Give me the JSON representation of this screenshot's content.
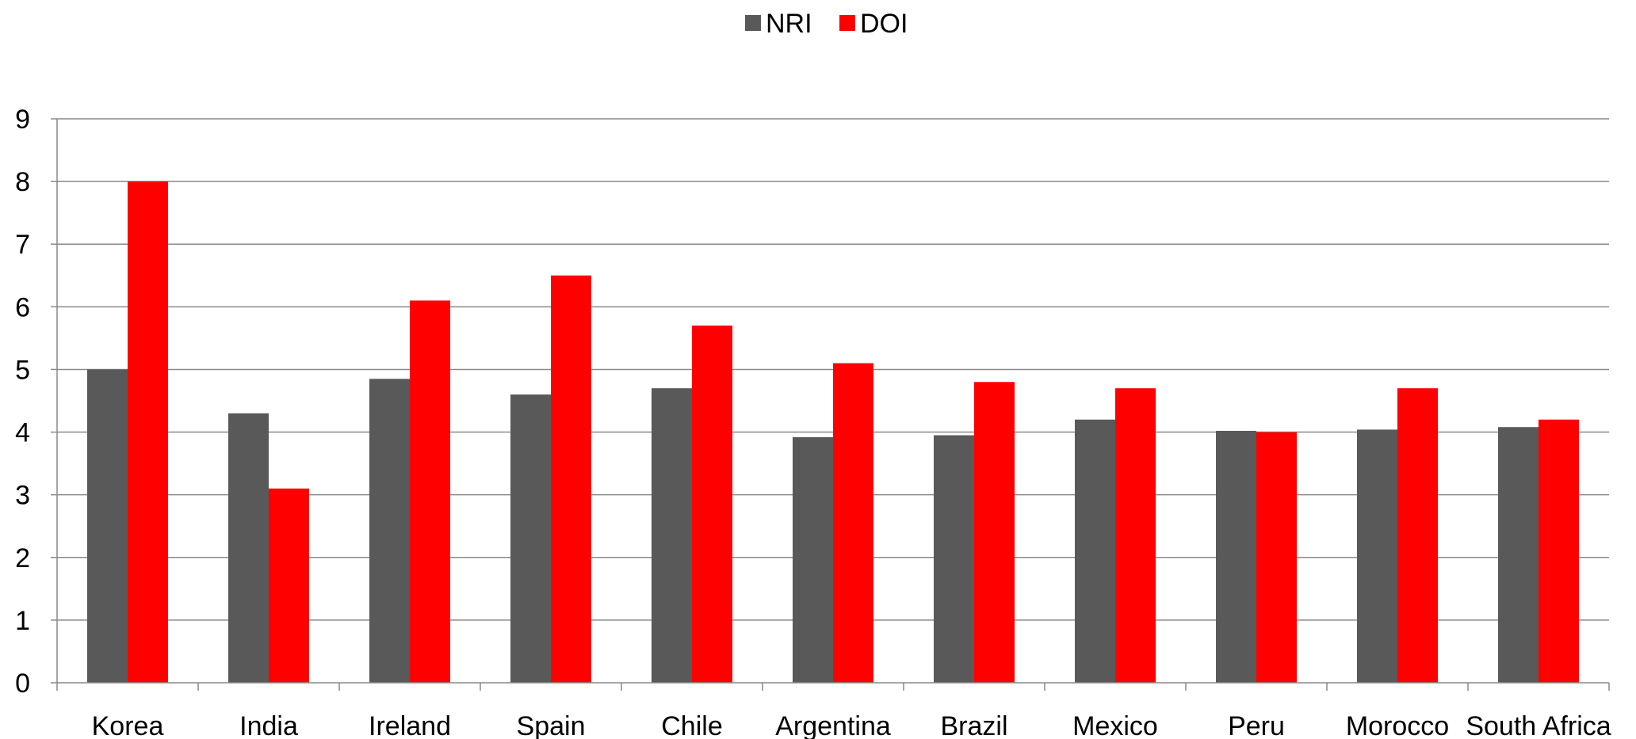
{
  "chart_data": {
    "type": "bar",
    "title": "",
    "xlabel": "",
    "ylabel": "",
    "categories": [
      "Korea",
      "India",
      "Ireland",
      "Spain",
      "Chile",
      "Argentina",
      "Brazil",
      "Mexico",
      "Peru",
      "Morocco",
      "South Africa"
    ],
    "series": [
      {
        "name": "NRI",
        "color": "#595959",
        "values": [
          5.0,
          4.3,
          4.85,
          4.6,
          4.7,
          3.92,
          3.95,
          4.2,
          4.02,
          4.04,
          4.08
        ]
      },
      {
        "name": "DOI",
        "color": "#ff0000",
        "values": [
          8.0,
          3.1,
          6.1,
          6.5,
          5.7,
          5.1,
          4.8,
          4.7,
          4.0,
          4.7,
          4.2
        ]
      }
    ],
    "ylim": [
      0,
      9
    ],
    "yticks": [
      "0",
      "1",
      "2",
      "3",
      "4",
      "5",
      "6",
      "7",
      "8",
      "9"
    ],
    "grid": true,
    "legend_position": "top-center",
    "gridline_color": "#898989"
  }
}
